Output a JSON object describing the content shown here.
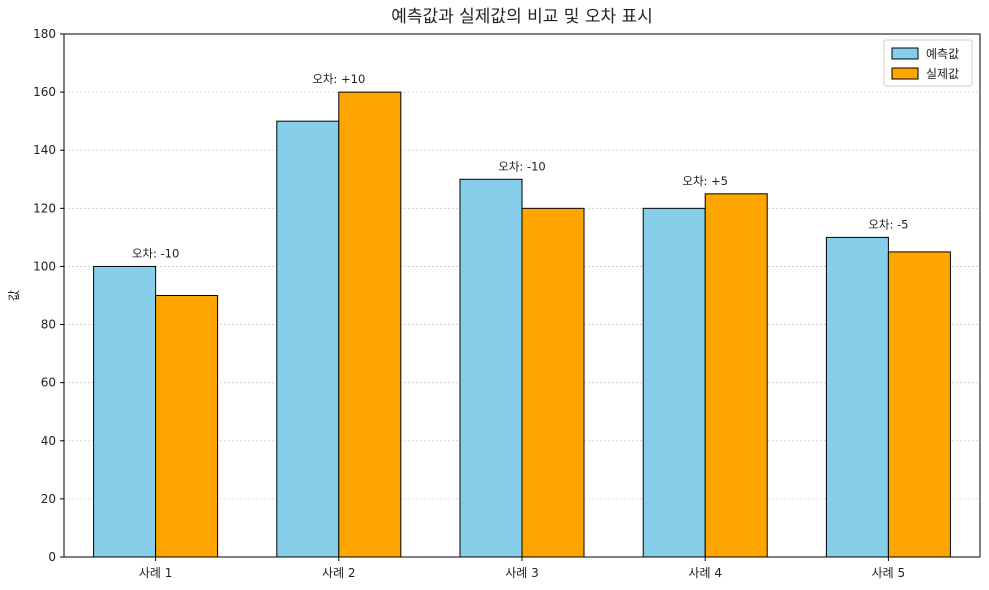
{
  "chart_data": {
    "type": "bar",
    "title": "예측값과 실제값의 비교 및 오차 표시",
    "xlabel": "",
    "ylabel": "값",
    "categories": [
      "사례 1",
      "사례 2",
      "사례 3",
      "사례 4",
      "사례 5"
    ],
    "series": [
      {
        "name": "예측값",
        "values": [
          100,
          150,
          130,
          120,
          110
        ],
        "color": "#87ceeb"
      },
      {
        "name": "실제값",
        "values": [
          90,
          160,
          120,
          125,
          105
        ],
        "color": "#ffa500"
      }
    ],
    "annotations": [
      "오차: -10",
      "오차: +10",
      "오차: -10",
      "오차: +5",
      "오차: -5"
    ],
    "ylim": [
      0,
      180
    ],
    "yticks": [
      0,
      20,
      40,
      60,
      80,
      100,
      120,
      140,
      160,
      180
    ],
    "grid": "y, dotted",
    "legend_position": "top-right"
  }
}
